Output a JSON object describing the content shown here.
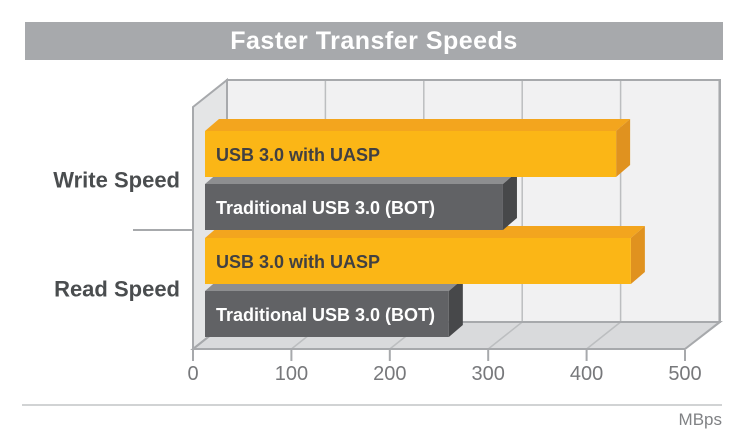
{
  "chart_data": {
    "type": "bar",
    "orientation": "horizontal",
    "style": "3d-perspective",
    "title": "Faster Transfer Speeds",
    "categories": [
      "Write Speed",
      "Read Speed"
    ],
    "series": [
      {
        "name": "USB 3.0 with UASP",
        "values": [
          430,
          445
        ],
        "colors": {
          "face": "#FBB616",
          "bevel": "#F3A51E",
          "cap": "#E0921F",
          "text": "#414042"
        }
      },
      {
        "name": "Traditional USB 3.0 (BOT)",
        "values": [
          315,
          260
        ],
        "colors": {
          "face": "#616265",
          "bevel": "#8D8E90",
          "cap": "#47484A",
          "text": "#FFFFFF"
        }
      }
    ],
    "xlabel": "MBps",
    "xlim": [
      0,
      500
    ],
    "xticks": [
      0,
      100,
      200,
      300,
      400,
      500
    ],
    "grid": true,
    "legend": "labels-inside-bars"
  },
  "colors": {
    "title_bar_bg": "#A7A9AC",
    "title_text": "#FFFFFF",
    "back_wall": "#F1F1F2",
    "left_wall": "#E4E5E6",
    "floor": "#D9DADC",
    "wall_border": "#A7A9AC",
    "gridline": "#BCBEC0",
    "axis_tick": "#A7A9AC",
    "axis_text": "#77787B",
    "category_text": "#4A4D4F",
    "divider": "#D1D3D4",
    "unit_text": "#808285"
  }
}
